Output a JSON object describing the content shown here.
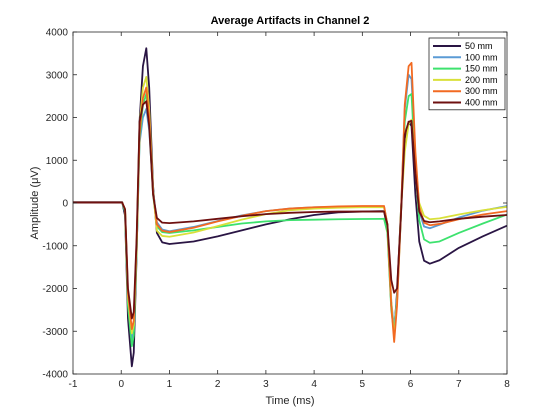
{
  "chart_data": {
    "type": "line",
    "title": "Average Artifacts in Channel 2",
    "xlabel": "Time (ms)",
    "ylabel": "Amplitude (μV)",
    "xlim": [
      -1,
      8
    ],
    "ylim": [
      -4000,
      4000
    ],
    "xticks": [
      "-1",
      "0",
      "1",
      "2",
      "3",
      "4",
      "5",
      "6",
      "7",
      "8"
    ],
    "yticks": [
      "-4000",
      "-3000",
      "-2000",
      "-1000",
      "0",
      "1000",
      "2000",
      "3000",
      "4000"
    ],
    "grid": false,
    "legend_position": "top-right",
    "series": [
      {
        "name": "50 mm",
        "color": "#2a1544",
        "points": [
          [
            -1,
            20
          ],
          [
            0.02,
            20
          ],
          [
            0.08,
            -300
          ],
          [
            0.14,
            -2700
          ],
          [
            0.22,
            -3820
          ],
          [
            0.26,
            -3500
          ],
          [
            0.32,
            -1200
          ],
          [
            0.38,
            1900
          ],
          [
            0.45,
            3200
          ],
          [
            0.52,
            3620
          ],
          [
            0.58,
            2700
          ],
          [
            0.66,
            400
          ],
          [
            0.74,
            -700
          ],
          [
            0.85,
            -920
          ],
          [
            1.0,
            -960
          ],
          [
            1.5,
            -900
          ],
          [
            2.0,
            -780
          ],
          [
            2.5,
            -640
          ],
          [
            3.0,
            -500
          ],
          [
            3.5,
            -380
          ],
          [
            4.0,
            -280
          ],
          [
            4.5,
            -220
          ],
          [
            5.0,
            -200
          ],
          [
            5.45,
            -190
          ],
          [
            5.52,
            -600
          ],
          [
            5.6,
            -2400
          ],
          [
            5.66,
            -3000
          ],
          [
            5.72,
            -2100
          ],
          [
            5.8,
            -200
          ],
          [
            5.88,
            1500
          ],
          [
            5.96,
            1900
          ],
          [
            6.02,
            1800
          ],
          [
            6.1,
            200
          ],
          [
            6.18,
            -900
          ],
          [
            6.28,
            -1350
          ],
          [
            6.4,
            -1420
          ],
          [
            6.6,
            -1340
          ],
          [
            7.0,
            -1050
          ],
          [
            7.5,
            -780
          ],
          [
            8.0,
            -530
          ]
        ]
      },
      {
        "name": "100 mm",
        "color": "#5b9bd5",
        "points": [
          [
            -1,
            10
          ],
          [
            0.02,
            10
          ],
          [
            0.08,
            -200
          ],
          [
            0.14,
            -2300
          ],
          [
            0.22,
            -3200
          ],
          [
            0.26,
            -3000
          ],
          [
            0.32,
            -1100
          ],
          [
            0.38,
            1400
          ],
          [
            0.45,
            2000
          ],
          [
            0.52,
            2200
          ],
          [
            0.58,
            1700
          ],
          [
            0.66,
            300
          ],
          [
            0.74,
            -450
          ],
          [
            0.85,
            -620
          ],
          [
            1.0,
            -660
          ],
          [
            1.5,
            -560
          ],
          [
            2.0,
            -420
          ],
          [
            2.5,
            -290
          ],
          [
            3.0,
            -190
          ],
          [
            3.5,
            -130
          ],
          [
            4.0,
            -100
          ],
          [
            4.5,
            -90
          ],
          [
            5.0,
            -80
          ],
          [
            5.45,
            -80
          ],
          [
            5.52,
            -500
          ],
          [
            5.6,
            -2300
          ],
          [
            5.66,
            -2950
          ],
          [
            5.72,
            -2200
          ],
          [
            5.8,
            -300
          ],
          [
            5.88,
            2200
          ],
          [
            5.96,
            3000
          ],
          [
            6.02,
            2900
          ],
          [
            6.1,
            1000
          ],
          [
            6.18,
            -200
          ],
          [
            6.28,
            -550
          ],
          [
            6.4,
            -590
          ],
          [
            6.6,
            -510
          ],
          [
            7.0,
            -340
          ],
          [
            7.5,
            -180
          ],
          [
            8.0,
            -70
          ]
        ]
      },
      {
        "name": "150 mm",
        "color": "#3de26e",
        "points": [
          [
            -1,
            10
          ],
          [
            0.02,
            10
          ],
          [
            0.08,
            -200
          ],
          [
            0.14,
            -2400
          ],
          [
            0.22,
            -3350
          ],
          [
            0.26,
            -3100
          ],
          [
            0.32,
            -1100
          ],
          [
            0.38,
            1500
          ],
          [
            0.45,
            2300
          ],
          [
            0.52,
            2550
          ],
          [
            0.58,
            1900
          ],
          [
            0.66,
            200
          ],
          [
            0.74,
            -550
          ],
          [
            0.85,
            -680
          ],
          [
            1.0,
            -700
          ],
          [
            1.5,
            -640
          ],
          [
            2.0,
            -560
          ],
          [
            2.5,
            -480
          ],
          [
            3.0,
            -430
          ],
          [
            3.5,
            -400
          ],
          [
            4.0,
            -390
          ],
          [
            4.5,
            -380
          ],
          [
            5.0,
            -375
          ],
          [
            5.45,
            -370
          ],
          [
            5.52,
            -700
          ],
          [
            5.6,
            -2500
          ],
          [
            5.66,
            -3050
          ],
          [
            5.72,
            -2300
          ],
          [
            5.8,
            -300
          ],
          [
            5.88,
            1900
          ],
          [
            5.96,
            2500
          ],
          [
            6.02,
            2550
          ],
          [
            6.1,
            800
          ],
          [
            6.18,
            -400
          ],
          [
            6.28,
            -850
          ],
          [
            6.4,
            -930
          ],
          [
            6.6,
            -900
          ],
          [
            7.0,
            -700
          ],
          [
            7.5,
            -480
          ],
          [
            8.0,
            -270
          ]
        ]
      },
      {
        "name": "200 mm",
        "color": "#d9e03a",
        "points": [
          [
            -1,
            10
          ],
          [
            0.02,
            10
          ],
          [
            0.08,
            -150
          ],
          [
            0.14,
            -2200
          ],
          [
            0.22,
            -3050
          ],
          [
            0.26,
            -2850
          ],
          [
            0.32,
            -1000
          ],
          [
            0.38,
            1800
          ],
          [
            0.45,
            2700
          ],
          [
            0.52,
            2950
          ],
          [
            0.58,
            2200
          ],
          [
            0.66,
            300
          ],
          [
            0.74,
            -650
          ],
          [
            0.85,
            -770
          ],
          [
            1.0,
            -790
          ],
          [
            1.5,
            -690
          ],
          [
            2.0,
            -540
          ],
          [
            2.5,
            -390
          ],
          [
            3.0,
            -260
          ],
          [
            3.5,
            -170
          ],
          [
            4.0,
            -130
          ],
          [
            4.5,
            -110
          ],
          [
            5.0,
            -100
          ],
          [
            5.45,
            -100
          ],
          [
            5.52,
            -500
          ],
          [
            5.6,
            -2300
          ],
          [
            5.66,
            -3150
          ],
          [
            5.72,
            -2300
          ],
          [
            5.8,
            -200
          ],
          [
            5.88,
            1200
          ],
          [
            5.96,
            1850
          ],
          [
            6.02,
            1950
          ],
          [
            6.1,
            900
          ],
          [
            6.18,
            0
          ],
          [
            6.28,
            -300
          ],
          [
            6.4,
            -380
          ],
          [
            6.6,
            -360
          ],
          [
            7.0,
            -270
          ],
          [
            7.5,
            -170
          ],
          [
            8.0,
            -90
          ]
        ]
      },
      {
        "name": "300 mm",
        "color": "#f26a22",
        "points": [
          [
            -1,
            10
          ],
          [
            0.02,
            10
          ],
          [
            0.08,
            -150
          ],
          [
            0.14,
            -2100
          ],
          [
            0.22,
            -2950
          ],
          [
            0.26,
            -2750
          ],
          [
            0.32,
            -900
          ],
          [
            0.38,
            1600
          ],
          [
            0.45,
            2450
          ],
          [
            0.52,
            2700
          ],
          [
            0.58,
            2000
          ],
          [
            0.66,
            250
          ],
          [
            0.74,
            -500
          ],
          [
            0.85,
            -650
          ],
          [
            1.0,
            -680
          ],
          [
            1.5,
            -580
          ],
          [
            2.0,
            -430
          ],
          [
            2.5,
            -300
          ],
          [
            3.0,
            -190
          ],
          [
            3.5,
            -130
          ],
          [
            4.0,
            -100
          ],
          [
            4.5,
            -80
          ],
          [
            5.0,
            -70
          ],
          [
            5.45,
            -70
          ],
          [
            5.52,
            -500
          ],
          [
            5.6,
            -2400
          ],
          [
            5.66,
            -3250
          ],
          [
            5.72,
            -2400
          ],
          [
            5.8,
            -300
          ],
          [
            5.88,
            2300
          ],
          [
            5.96,
            3200
          ],
          [
            6.02,
            3280
          ],
          [
            6.1,
            1200
          ],
          [
            6.18,
            -100
          ],
          [
            6.28,
            -460
          ],
          [
            6.4,
            -520
          ],
          [
            6.6,
            -490
          ],
          [
            7.0,
            -380
          ],
          [
            7.5,
            -270
          ],
          [
            8.0,
            -190
          ]
        ]
      },
      {
        "name": "400 mm",
        "color": "#6e1010",
        "points": [
          [
            -1,
            10
          ],
          [
            0.02,
            10
          ],
          [
            0.08,
            -150
          ],
          [
            0.14,
            -2000
          ],
          [
            0.22,
            -2700
          ],
          [
            0.26,
            -2550
          ],
          [
            0.32,
            -800
          ],
          [
            0.38,
            1900
          ],
          [
            0.45,
            2300
          ],
          [
            0.52,
            2380
          ],
          [
            0.58,
            1800
          ],
          [
            0.66,
            200
          ],
          [
            0.74,
            -350
          ],
          [
            0.85,
            -460
          ],
          [
            1.0,
            -470
          ],
          [
            1.5,
            -430
          ],
          [
            2.0,
            -370
          ],
          [
            2.5,
            -310
          ],
          [
            3.0,
            -260
          ],
          [
            3.5,
            -230
          ],
          [
            4.0,
            -210
          ],
          [
            4.5,
            -200
          ],
          [
            5.0,
            -200
          ],
          [
            5.45,
            -200
          ],
          [
            5.52,
            -500
          ],
          [
            5.6,
            -1800
          ],
          [
            5.66,
            -2100
          ],
          [
            5.72,
            -2000
          ],
          [
            5.8,
            -300
          ],
          [
            5.88,
            1600
          ],
          [
            5.96,
            1900
          ],
          [
            6.02,
            1920
          ],
          [
            6.1,
            700
          ],
          [
            6.18,
            -200
          ],
          [
            6.28,
            -420
          ],
          [
            6.4,
            -450
          ],
          [
            6.6,
            -430
          ],
          [
            7.0,
            -370
          ],
          [
            7.5,
            -320
          ],
          [
            8.0,
            -280
          ]
        ]
      }
    ]
  }
}
